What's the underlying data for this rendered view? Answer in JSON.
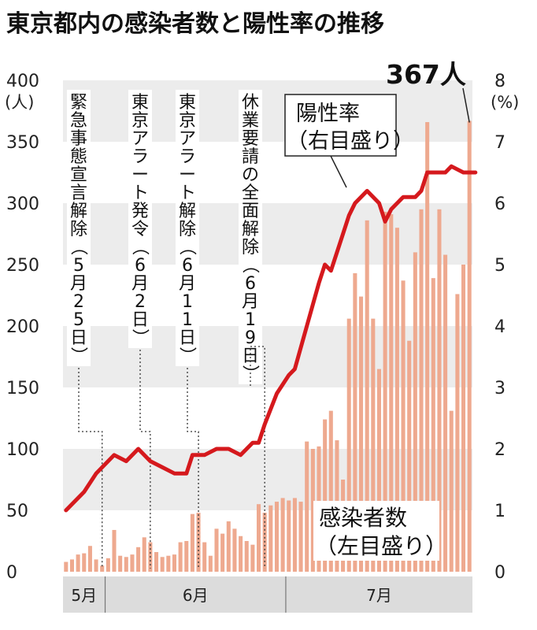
{
  "chart_data": {
    "type": "bar+line",
    "title": "東京都内の感染者数と陽性率の推移",
    "left_axis": {
      "unit": "(人)",
      "ylim": [
        0,
        400
      ],
      "ticks": [
        0,
        50,
        100,
        150,
        200,
        250,
        300,
        350,
        400
      ]
    },
    "right_axis": {
      "unit": "(%)",
      "ylim": [
        0,
        8
      ],
      "ticks": [
        0,
        1,
        2,
        3,
        4,
        5,
        6,
        7,
        8
      ]
    },
    "x_month_labels": [
      "5月",
      "6月",
      "7月"
    ],
    "grid": "horizontal bands",
    "annotations": [
      {
        "key": "a1",
        "text": "緊急事態宣言解除（5月25日）"
      },
      {
        "key": "a2",
        "text": "東京アラート発令（6月2日）"
      },
      {
        "key": "a3",
        "text": "東京アラート解除（6月11日）"
      },
      {
        "key": "a4",
        "text": "休業要請の全面解除（6月19日）"
      }
    ],
    "peak_label": "367人",
    "series": [
      {
        "name": "感染者数",
        "axis_note": "（左目盛り）",
        "type": "bar",
        "color": "#eea98f",
        "values": [
          8,
          10,
          14,
          15,
          21,
          10,
          5,
          11,
          34,
          13,
          12,
          14,
          20,
          28,
          24,
          16,
          12,
          13,
          14,
          24,
          25,
          47,
          48,
          24,
          13,
          35,
          31,
          41,
          35,
          29,
          25,
          22,
          55,
          48,
          54,
          57,
          60,
          58,
          60,
          57,
          106,
          100,
          102,
          124,
          131,
          107,
          75,
          206,
          243,
          224,
          286,
          206,
          165,
          293,
          291,
          280,
          237,
          188,
          260,
          295,
          366,
          239,
          295,
          258,
          131,
          226,
          250,
          367
        ],
        "note": "Counts per day, late May to end of July 2020 (estimated from bar heights)"
      },
      {
        "name": "陽性率",
        "axis_note": "（右目盛り）",
        "type": "line",
        "color": "#d5191d",
        "x_index": [
          0,
          3,
          5,
          8,
          10,
          12,
          14,
          16,
          18,
          20,
          21,
          23,
          25,
          27,
          29,
          31,
          32,
          33,
          35,
          37,
          38,
          40,
          42,
          43,
          44,
          46,
          47,
          48,
          50,
          52,
          53,
          54,
          56,
          58,
          59,
          60,
          62,
          63,
          64,
          66,
          67,
          68
        ],
        "values": [
          1.0,
          1.3,
          1.6,
          1.9,
          1.8,
          2.0,
          1.8,
          1.7,
          1.6,
          1.6,
          1.9,
          1.9,
          2.0,
          2.0,
          1.9,
          2.1,
          2.1,
          2.4,
          2.9,
          3.2,
          3.3,
          4.0,
          4.7,
          5.0,
          4.9,
          5.5,
          5.8,
          6.0,
          6.2,
          6.0,
          5.7,
          5.9,
          6.1,
          6.1,
          6.2,
          6.5,
          6.5,
          6.5,
          6.6,
          6.5,
          6.5,
          6.5
        ],
        "note": "Positive rate in % (right axis)"
      }
    ]
  }
}
